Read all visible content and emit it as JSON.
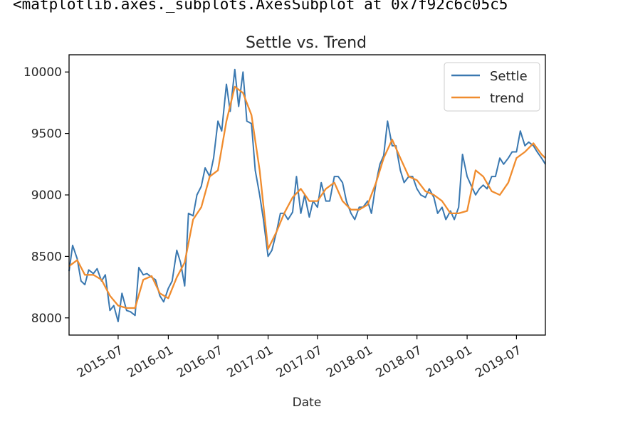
{
  "notebook": {
    "output_text": "<matplotlib.axes._subplots.AxesSubplot at 0x7f92c6c05c5"
  },
  "chart_data": {
    "type": "line",
    "title": "Settle vs. Trend",
    "xlabel": "Date",
    "ylabel": "",
    "ylim": [
      7860,
      10140
    ],
    "xlim": [
      "2015-01-02",
      "2019-10-15"
    ],
    "y_ticks": [
      8000,
      8500,
      9000,
      9500,
      10000
    ],
    "x_ticks": [
      "2015-07",
      "2016-01",
      "2016-07",
      "2017-01",
      "2017-07",
      "2018-01",
      "2018-07",
      "2019-01",
      "2019-07"
    ],
    "legend": {
      "position": "top-right",
      "entries": [
        "Settle",
        "trend"
      ]
    },
    "colors": {
      "Settle": "#3a78b0",
      "trend": "#f08c2e"
    },
    "grid": false,
    "series": [
      {
        "name": "Settle",
        "x": [
          "2015-01-02",
          "2015-01-15",
          "2015-02-01",
          "2015-02-15",
          "2015-03-01",
          "2015-03-15",
          "2015-04-01",
          "2015-04-15",
          "2015-05-01",
          "2015-05-15",
          "2015-06-01",
          "2015-06-15",
          "2015-07-01",
          "2015-07-15",
          "2015-08-01",
          "2015-08-15",
          "2015-09-01",
          "2015-09-15",
          "2015-10-01",
          "2015-10-15",
          "2015-11-01",
          "2015-11-15",
          "2015-12-01",
          "2015-12-15",
          "2016-01-01",
          "2016-01-15",
          "2016-02-01",
          "2016-02-15",
          "2016-03-01",
          "2016-03-15",
          "2016-04-01",
          "2016-04-15",
          "2016-05-01",
          "2016-05-15",
          "2016-06-01",
          "2016-06-15",
          "2016-07-01",
          "2016-07-15",
          "2016-08-01",
          "2016-08-15",
          "2016-09-01",
          "2016-09-15",
          "2016-10-01",
          "2016-10-15",
          "2016-11-01",
          "2016-11-15",
          "2016-12-01",
          "2016-12-15",
          "2017-01-01",
          "2017-01-15",
          "2017-02-01",
          "2017-02-15",
          "2017-03-01",
          "2017-03-15",
          "2017-04-01",
          "2017-04-15",
          "2017-05-01",
          "2017-05-15",
          "2017-06-01",
          "2017-06-15",
          "2017-07-01",
          "2017-07-15",
          "2017-08-01",
          "2017-08-15",
          "2017-09-01",
          "2017-09-15",
          "2017-10-01",
          "2017-10-15",
          "2017-11-01",
          "2017-11-15",
          "2017-12-01",
          "2017-12-15",
          "2018-01-01",
          "2018-01-15",
          "2018-02-01",
          "2018-02-15",
          "2018-03-01",
          "2018-03-15",
          "2018-04-01",
          "2018-04-15",
          "2018-05-01",
          "2018-05-15",
          "2018-06-01",
          "2018-06-15",
          "2018-07-01",
          "2018-07-15",
          "2018-08-01",
          "2018-08-15",
          "2018-09-01",
          "2018-09-15",
          "2018-10-01",
          "2018-10-15",
          "2018-11-01",
          "2018-11-15",
          "2018-12-01",
          "2018-12-15",
          "2019-01-01",
          "2019-01-15",
          "2019-02-01",
          "2019-02-15",
          "2019-03-01",
          "2019-03-15",
          "2019-04-01",
          "2019-04-15",
          "2019-05-01",
          "2019-05-15",
          "2019-06-01",
          "2019-06-15",
          "2019-07-01",
          "2019-07-15",
          "2019-08-01",
          "2019-08-15",
          "2019-09-01",
          "2019-09-15",
          "2019-10-01",
          "2019-10-15"
        ],
        "values": [
          8380,
          8590,
          8480,
          8300,
          8270,
          8390,
          8360,
          8400,
          8300,
          8350,
          8060,
          8100,
          7970,
          8200,
          8060,
          8050,
          8020,
          8410,
          8350,
          8360,
          8330,
          8310,
          8180,
          8130,
          8240,
          8300,
          8550,
          8450,
          8260,
          8850,
          8830,
          9000,
          9070,
          9220,
          9150,
          9300,
          9600,
          9520,
          9900,
          9680,
          10020,
          9720,
          10000,
          9600,
          9580,
          9200,
          9000,
          8800,
          8500,
          8550,
          8700,
          8850,
          8850,
          8800,
          8860,
          9150,
          8850,
          9000,
          8820,
          8950,
          8900,
          9100,
          8950,
          8950,
          9150,
          9150,
          9100,
          8950,
          8850,
          8800,
          8900,
          8900,
          8950,
          8850,
          9100,
          9250,
          9320,
          9600,
          9400,
          9400,
          9200,
          9100,
          9150,
          9150,
          9050,
          9000,
          8980,
          9050,
          8980,
          8850,
          8900,
          8800,
          8870,
          8800,
          8900,
          9330,
          9150,
          9080,
          9000,
          9050,
          9080,
          9050,
          9150,
          9150,
          9300,
          9250,
          9300,
          9350,
          9350,
          9520,
          9400,
          9430,
          9400,
          9350,
          9300,
          9250
        ]
      },
      {
        "name": "trend",
        "x": [
          "2015-01-02",
          "2015-02-01",
          "2015-03-01",
          "2015-04-01",
          "2015-05-01",
          "2015-06-01",
          "2015-07-01",
          "2015-08-01",
          "2015-09-01",
          "2015-10-01",
          "2015-11-01",
          "2015-12-01",
          "2016-01-01",
          "2016-02-01",
          "2016-03-01",
          "2016-04-01",
          "2016-05-01",
          "2016-06-01",
          "2016-07-01",
          "2016-08-01",
          "2016-09-01",
          "2016-10-01",
          "2016-11-01",
          "2016-12-01",
          "2017-01-01",
          "2017-02-01",
          "2017-03-01",
          "2017-04-01",
          "2017-05-01",
          "2017-06-01",
          "2017-07-01",
          "2017-08-01",
          "2017-09-01",
          "2017-10-01",
          "2017-11-01",
          "2017-12-01",
          "2018-01-01",
          "2018-02-01",
          "2018-03-01",
          "2018-04-01",
          "2018-05-01",
          "2018-06-01",
          "2018-07-01",
          "2018-08-01",
          "2018-09-01",
          "2018-10-01",
          "2018-11-01",
          "2018-12-01",
          "2019-01-01",
          "2019-02-01",
          "2019-03-01",
          "2019-04-01",
          "2019-05-01",
          "2019-06-01",
          "2019-07-01",
          "2019-08-01",
          "2019-09-01",
          "2019-10-01",
          "2019-10-15"
        ],
        "values": [
          8420,
          8470,
          8350,
          8350,
          8310,
          8180,
          8100,
          8080,
          8080,
          8310,
          8340,
          8200,
          8160,
          8330,
          8450,
          8800,
          8900,
          9150,
          9200,
          9600,
          9880,
          9830,
          9650,
          9200,
          8560,
          8700,
          8850,
          8980,
          9050,
          8950,
          8950,
          9050,
          9100,
          8950,
          8880,
          8880,
          8920,
          9100,
          9300,
          9450,
          9300,
          9150,
          9120,
          9030,
          9000,
          8950,
          8850,
          8850,
          8870,
          9200,
          9150,
          9030,
          9000,
          9100,
          9300,
          9350,
          9420,
          9330,
          9300
        ]
      }
    ]
  }
}
